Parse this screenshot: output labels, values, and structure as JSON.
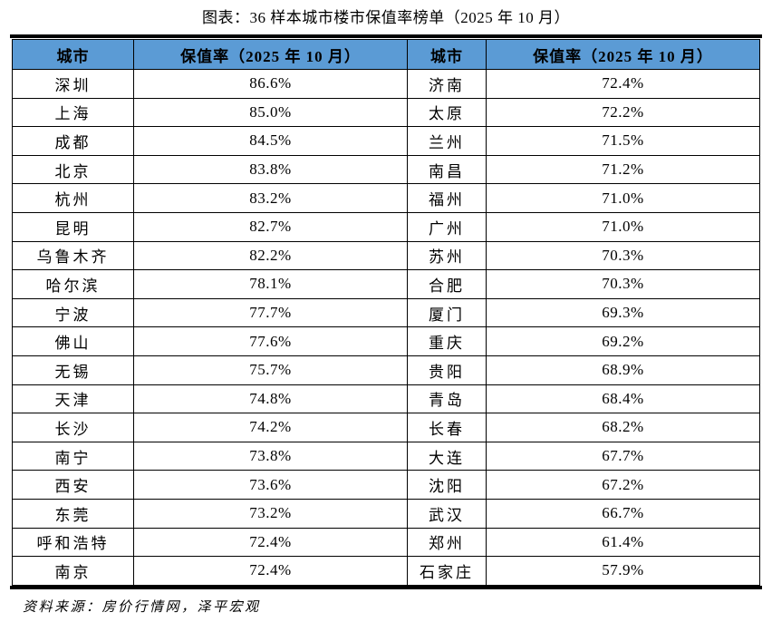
{
  "title": "图表：36 样本城市楼市保值率榜单（2025 年 10 月）",
  "source_note": "资料来源：房价行情网，泽平宏观",
  "colors": {
    "header_bg": "#5B9BD5",
    "border": "#000000",
    "text": "#000000"
  },
  "table": {
    "headers": [
      "城市",
      "保值率（2025 年 10 月）",
      "城市",
      "保值率（2025 年 10 月）"
    ],
    "rows": [
      {
        "city1": "深圳",
        "rate1": "86.6%",
        "city2": "济南",
        "rate2": "72.4%"
      },
      {
        "city1": "上海",
        "rate1": "85.0%",
        "city2": "太原",
        "rate2": "72.2%"
      },
      {
        "city1": "成都",
        "rate1": "84.5%",
        "city2": "兰州",
        "rate2": "71.5%"
      },
      {
        "city1": "北京",
        "rate1": "83.8%",
        "city2": "南昌",
        "rate2": "71.2%"
      },
      {
        "city1": "杭州",
        "rate1": "83.2%",
        "city2": "福州",
        "rate2": "71.0%"
      },
      {
        "city1": "昆明",
        "rate1": "82.7%",
        "city2": "广州",
        "rate2": "71.0%"
      },
      {
        "city1": "乌鲁木齐",
        "rate1": "82.2%",
        "city2": "苏州",
        "rate2": "70.3%"
      },
      {
        "city1": "哈尔滨",
        "rate1": "78.1%",
        "city2": "合肥",
        "rate2": "70.3%"
      },
      {
        "city1": "宁波",
        "rate1": "77.7%",
        "city2": "厦门",
        "rate2": "69.3%"
      },
      {
        "city1": "佛山",
        "rate1": "77.6%",
        "city2": "重庆",
        "rate2": "69.2%"
      },
      {
        "city1": "无锡",
        "rate1": "75.7%",
        "city2": "贵阳",
        "rate2": "68.9%"
      },
      {
        "city1": "天津",
        "rate1": "74.8%",
        "city2": "青岛",
        "rate2": "68.4%"
      },
      {
        "city1": "长沙",
        "rate1": "74.2%",
        "city2": "长春",
        "rate2": "68.2%"
      },
      {
        "city1": "南宁",
        "rate1": "73.8%",
        "city2": "大连",
        "rate2": "67.7%"
      },
      {
        "city1": "西安",
        "rate1": "73.6%",
        "city2": "沈阳",
        "rate2": "67.2%"
      },
      {
        "city1": "东莞",
        "rate1": "73.2%",
        "city2": "武汉",
        "rate2": "66.7%"
      },
      {
        "city1": "呼和浩特",
        "rate1": "72.4%",
        "city2": "郑州",
        "rate2": "61.4%"
      },
      {
        "city1": "南京",
        "rate1": "72.4%",
        "city2": "石家庄",
        "rate2": "57.9%"
      }
    ]
  },
  "chart_data": {
    "type": "table",
    "title": "图表：36 样本城市楼市保值率榜单（2025 年 10 月）",
    "columns": [
      "城市",
      "保值率（2025 年 10 月）"
    ],
    "entries": [
      [
        "深圳",
        86.6
      ],
      [
        "上海",
        85.0
      ],
      [
        "成都",
        84.5
      ],
      [
        "北京",
        83.8
      ],
      [
        "杭州",
        83.2
      ],
      [
        "昆明",
        82.7
      ],
      [
        "乌鲁木齐",
        82.2
      ],
      [
        "哈尔滨",
        78.1
      ],
      [
        "宁波",
        77.7
      ],
      [
        "佛山",
        77.6
      ],
      [
        "无锡",
        75.7
      ],
      [
        "天津",
        74.8
      ],
      [
        "长沙",
        74.2
      ],
      [
        "南宁",
        73.8
      ],
      [
        "西安",
        73.6
      ],
      [
        "东莞",
        73.2
      ],
      [
        "呼和浩特",
        72.4
      ],
      [
        "南京",
        72.4
      ],
      [
        "济南",
        72.4
      ],
      [
        "太原",
        72.2
      ],
      [
        "兰州",
        71.5
      ],
      [
        "南昌",
        71.2
      ],
      [
        "福州",
        71.0
      ],
      [
        "广州",
        71.0
      ],
      [
        "苏州",
        70.3
      ],
      [
        "合肥",
        70.3
      ],
      [
        "厦门",
        69.3
      ],
      [
        "重庆",
        69.2
      ],
      [
        "贵阳",
        68.9
      ],
      [
        "青岛",
        68.4
      ],
      [
        "长春",
        68.2
      ],
      [
        "大连",
        67.7
      ],
      [
        "沈阳",
        67.2
      ],
      [
        "武汉",
        66.7
      ],
      [
        "郑州",
        61.4
      ],
      [
        "石家庄",
        57.9
      ]
    ],
    "source": "资料来源：房价行情网，泽平宏观"
  }
}
